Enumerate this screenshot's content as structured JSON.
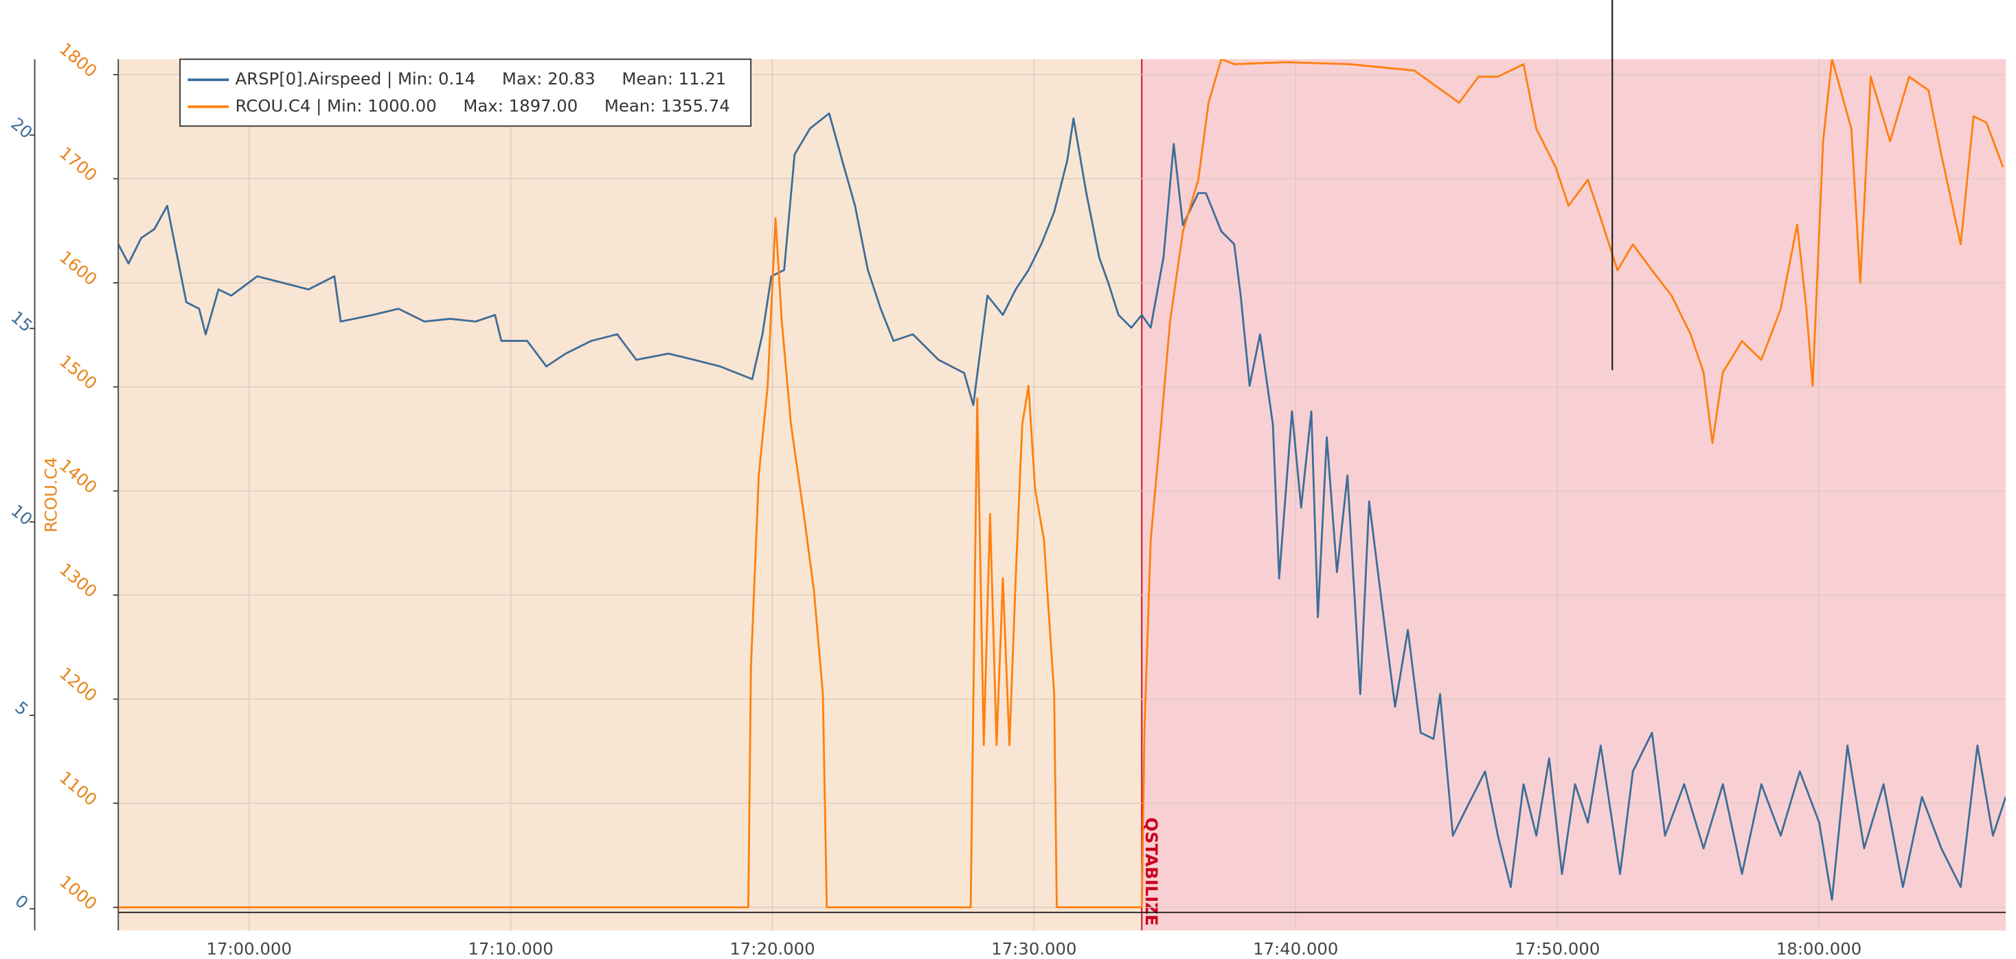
{
  "chart_data": {
    "type": "line",
    "y2label": "RCOU.C4",
    "xlim": [
      1015,
      1087.14
    ],
    "xticks": [
      {
        "value": 1020,
        "label": "17:00.000"
      },
      {
        "value": 1030,
        "label": "17:10.000"
      },
      {
        "value": 1040,
        "label": "17:20.000"
      },
      {
        "value": 1050,
        "label": "17:30.000"
      },
      {
        "value": 1060,
        "label": "17:40.000"
      },
      {
        "value": 1070,
        "label": "17:50.000"
      },
      {
        "value": 1080,
        "label": "18:00.000"
      }
    ],
    "ylim": [
      -0.56,
      21.96
    ],
    "yticks": [
      0,
      5,
      10,
      15,
      20
    ],
    "y2lim": [
      977.8,
      1814.8
    ],
    "y2ticks": [
      1000,
      1100,
      1200,
      1300,
      1400,
      1500,
      1600,
      1700,
      1800
    ],
    "grid": true,
    "background_color": "#f9e5d3",
    "regions": [
      {
        "start": 1054.12,
        "label": "QSTABILIZE",
        "color": "#f8d0d3",
        "label_color": "#c8001e"
      }
    ],
    "series": [
      {
        "name": "ARSP[0].Airspeed | Min: 0.14     Max: 20.83     Mean: 11.21",
        "color": "#3d6d99",
        "x": [
          1015.0,
          1015.39,
          1015.88,
          1016.38,
          1016.87,
          1017.26,
          1017.6,
          1018.09,
          1018.34,
          1018.83,
          1019.32,
          1020.31,
          1021.29,
          1022.27,
          1023.26,
          1023.5,
          1024.73,
          1025.71,
          1026.7,
          1027.68,
          1028.66,
          1029.4,
          1029.64,
          1030.63,
          1031.36,
          1032.1,
          1033.08,
          1034.07,
          1034.8,
          1036.03,
          1037.01,
          1038.0,
          1039.23,
          1039.62,
          1039.96,
          1040.45,
          1040.85,
          1041.44,
          1042.17,
          1042.67,
          1043.16,
          1043.65,
          1044.14,
          1044.63,
          1045.37,
          1046.35,
          1047.33,
          1047.68,
          1048.22,
          1048.81,
          1049.3,
          1049.79,
          1050.28,
          1050.77,
          1051.27,
          1051.51,
          1052.0,
          1052.49,
          1052.84,
          1053.23,
          1053.72,
          1054.12,
          1054.46,
          1054.95,
          1055.34,
          1055.69,
          1056.28,
          1056.57,
          1057.16,
          1057.65,
          1057.9,
          1058.24,
          1058.64,
          1059.13,
          1059.37,
          1059.86,
          1060.21,
          1060.6,
          1060.85,
          1061.19,
          1061.58,
          1061.98,
          1062.47,
          1062.81,
          1063.3,
          1063.8,
          1064.29,
          1064.78,
          1065.27,
          1065.52,
          1066.01,
          1066.5,
          1067.24,
          1067.73,
          1068.22,
          1068.71,
          1069.2,
          1069.69,
          1070.18,
          1070.68,
          1071.17,
          1071.66,
          1072.4,
          1072.89,
          1073.62,
          1074.12,
          1074.85,
          1075.59,
          1076.33,
          1077.06,
          1077.8,
          1078.54,
          1079.27,
          1080.01,
          1080.5,
          1081.09,
          1081.73,
          1082.47,
          1083.21,
          1083.94,
          1084.68,
          1085.42,
          1086.06,
          1086.65,
          1087.14
        ],
        "values": [
          17.18,
          16.68,
          17.34,
          17.57,
          18.17,
          16.84,
          15.68,
          15.51,
          14.85,
          16.01,
          15.85,
          16.35,
          16.18,
          16.01,
          16.35,
          15.18,
          15.35,
          15.51,
          15.18,
          15.25,
          15.18,
          15.35,
          14.68,
          14.68,
          14.02,
          14.35,
          14.68,
          14.85,
          14.19,
          14.35,
          14.19,
          14.02,
          13.69,
          14.85,
          16.35,
          16.51,
          19.5,
          20.17,
          20.56,
          19.34,
          18.17,
          16.51,
          15.51,
          14.68,
          14.85,
          14.19,
          13.85,
          13.02,
          15.85,
          15.35,
          16.01,
          16.51,
          17.18,
          18.01,
          19.34,
          20.43,
          18.5,
          16.84,
          16.18,
          15.35,
          15.02,
          15.35,
          15.02,
          16.84,
          19.77,
          17.67,
          18.5,
          18.5,
          17.51,
          17.18,
          15.85,
          13.52,
          14.85,
          12.52,
          8.54,
          12.86,
          10.37,
          12.86,
          7.54,
          12.19,
          8.7,
          11.2,
          5.55,
          10.53,
          7.87,
          5.22,
          7.21,
          4.55,
          4.39,
          5.55,
          1.89,
          2.56,
          3.55,
          1.89,
          0.56,
          3.22,
          1.89,
          3.89,
          0.9,
          3.22,
          2.23,
          4.22,
          0.9,
          3.55,
          4.55,
          1.89,
          3.22,
          1.56,
          3.22,
          0.9,
          3.22,
          1.89,
          3.55,
          2.23,
          0.23,
          4.22,
          1.56,
          3.22,
          0.56,
          2.89,
          1.56,
          0.56,
          4.22,
          1.89,
          2.89
        ]
      },
      {
        "name": "RCOU.C4 | Min: 1000.00     Max: 1897.00     Mean: 1355.74",
        "color": "#ff7f0e",
        "axis": "y2",
        "x": [
          1015.0,
          1039.08,
          1039.18,
          1039.48,
          1039.82,
          1040.12,
          1040.36,
          1040.71,
          1041.2,
          1041.59,
          1041.93,
          1042.08,
          1047.58,
          1047.83,
          1048.08,
          1048.32,
          1048.57,
          1048.81,
          1049.06,
          1049.3,
          1049.55,
          1049.79,
          1050.04,
          1050.38,
          1050.77,
          1050.87,
          1054.12,
          1054.22,
          1054.46,
          1054.86,
          1055.2,
          1055.69,
          1056.28,
          1056.67,
          1057.16,
          1057.65,
          1059.62,
          1062.08,
          1064.53,
          1066.25,
          1066.99,
          1067.73,
          1068.71,
          1069.2,
          1069.94,
          1070.43,
          1071.17,
          1071.66,
          1072.3,
          1072.89,
          1073.62,
          1074.36,
          1075.09,
          1075.59,
          1075.93,
          1076.33,
          1077.06,
          1077.8,
          1078.54,
          1079.17,
          1079.52,
          1079.76,
          1080.16,
          1080.5,
          1081.24,
          1081.58,
          1081.98,
          1082.72,
          1083.45,
          1084.19,
          1084.68,
          1085.42,
          1085.91,
          1086.4,
          1087.04
        ],
        "values": [
          1000,
          1000,
          1230,
          1415,
          1501,
          1662,
          1563,
          1464,
          1378,
          1304,
          1205,
          1000,
          1000,
          1489,
          1156,
          1378,
          1156,
          1316,
          1156,
          1316,
          1464,
          1501,
          1402,
          1353,
          1205,
          1000,
          1000,
          1168,
          1353,
          1464,
          1563,
          1649,
          1699,
          1773,
          1815,
          1810,
          1812,
          1810,
          1804,
          1773,
          1798,
          1798,
          1810,
          1748,
          1711,
          1674,
          1699,
          1662,
          1612,
          1637,
          1612,
          1588,
          1551,
          1514,
          1446,
          1514,
          1544,
          1526,
          1575,
          1656,
          1575,
          1501,
          1736,
          1815,
          1748,
          1600,
          1798,
          1736,
          1798,
          1785,
          1723,
          1637,
          1760,
          1754,
          1711
        ]
      }
    ]
  }
}
